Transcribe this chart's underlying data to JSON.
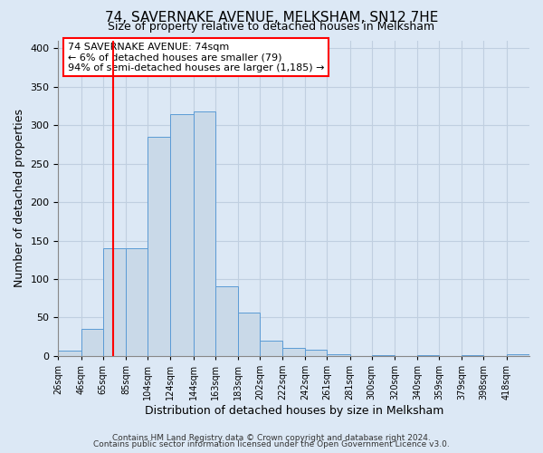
{
  "title": "74, SAVERNAKE AVENUE, MELKSHAM, SN12 7HE",
  "subtitle": "Size of property relative to detached houses in Melksham",
  "xlabel": "Distribution of detached houses by size in Melksham",
  "ylabel": "Number of detached properties",
  "bin_labels": [
    "26sqm",
    "46sqm",
    "65sqm",
    "85sqm",
    "104sqm",
    "124sqm",
    "144sqm",
    "163sqm",
    "183sqm",
    "202sqm",
    "222sqm",
    "242sqm",
    "261sqm",
    "281sqm",
    "300sqm",
    "320sqm",
    "340sqm",
    "359sqm",
    "379sqm",
    "398sqm",
    "418sqm"
  ],
  "bin_edges": [
    26,
    46,
    65,
    85,
    104,
    124,
    144,
    163,
    183,
    202,
    222,
    242,
    261,
    281,
    300,
    320,
    340,
    359,
    379,
    398,
    418,
    438
  ],
  "bar_heights": [
    7,
    35,
    140,
    140,
    285,
    315,
    318,
    91,
    57,
    20,
    10,
    8,
    2,
    0,
    1,
    0,
    1,
    0,
    1,
    0,
    2
  ],
  "bar_color": "#c9d9e8",
  "bar_edge_color": "#5b9bd5",
  "vline_x": 74,
  "vline_color": "red",
  "ylim": [
    0,
    410
  ],
  "annotation_line1": "74 SAVERNAKE AVENUE: 74sqm",
  "annotation_line2": "← 6% of detached houses are smaller (79)",
  "annotation_line3": "94% of semi-detached houses are larger (1,185) →",
  "annotation_box_color": "white",
  "annotation_box_edge_color": "red",
  "footer_line1": "Contains HM Land Registry data © Crown copyright and database right 2024.",
  "footer_line2": "Contains public sector information licensed under the Open Government Licence v3.0.",
  "background_color": "#dce8f5",
  "plot_background_color": "#dce8f5",
  "grid_color": "#c0cfe0"
}
